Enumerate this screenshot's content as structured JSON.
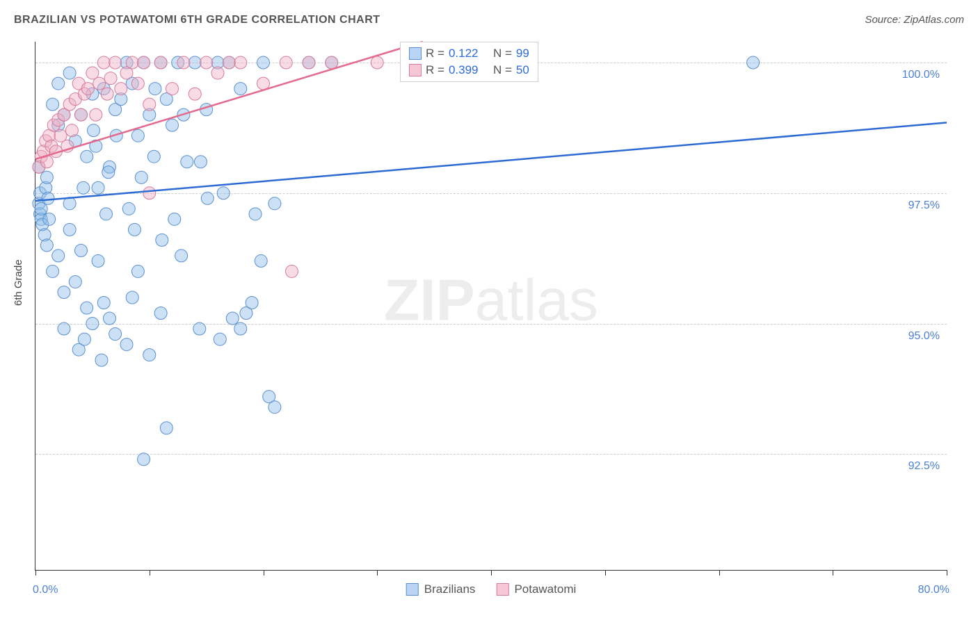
{
  "header": {
    "title": "BRAZILIAN VS POTAWATOMI 6TH GRADE CORRELATION CHART",
    "source": "Source: ZipAtlas.com"
  },
  "axis": {
    "y_title": "6th Grade"
  },
  "watermark": {
    "bold": "ZIP",
    "rest": "atlas"
  },
  "chart": {
    "type": "scatter",
    "xlim": [
      0,
      80
    ],
    "ylim": [
      90.28,
      100.4
    ],
    "x_axis_labels": {
      "min": "0.0%",
      "max": "80.0%"
    },
    "x_ticks": [
      0,
      10,
      20,
      30,
      40,
      50,
      60,
      70,
      80
    ],
    "y_gridlines": [
      92.5,
      95.0,
      97.5,
      100.0
    ],
    "y_labels": [
      "92.5%",
      "95.0%",
      "97.5%",
      "100.0%"
    ],
    "grid_color": "#cccccc",
    "background_color": "#ffffff",
    "marker_radius": 9,
    "marker_opacity": 0.45,
    "trend_line_width": 2.5,
    "series": [
      {
        "name": "Brazilians",
        "marker_fill": "#8fbce8",
        "marker_stroke": "#5a8fd0",
        "line_color": "#2c6bd4",
        "R": "0.122",
        "N": "99",
        "trend": {
          "x1": 0,
          "y1": 97.35,
          "x2": 80,
          "y2": 98.85
        },
        "points": [
          [
            0.3,
            97.3
          ],
          [
            0.4,
            97.1
          ],
          [
            0.5,
            97.0
          ],
          [
            0.6,
            96.9
          ],
          [
            0.5,
            97.2
          ],
          [
            0.8,
            96.7
          ],
          [
            0.4,
            97.5
          ],
          [
            0.9,
            97.6
          ],
          [
            1.0,
            97.8
          ],
          [
            0.3,
            98.0
          ],
          [
            1.1,
            97.4
          ],
          [
            1.2,
            97.0
          ],
          [
            1.5,
            99.2
          ],
          [
            2.0,
            99.6
          ],
          [
            2.5,
            99.0
          ],
          [
            3.0,
            99.8
          ],
          [
            3.5,
            98.5
          ],
          [
            4.0,
            99.0
          ],
          [
            4.5,
            98.2
          ],
          [
            5.0,
            99.4
          ],
          [
            5.5,
            97.6
          ],
          [
            6.0,
            99.5
          ],
          [
            6.5,
            98.0
          ],
          [
            7.0,
            99.1
          ],
          [
            7.5,
            99.3
          ],
          [
            8.0,
            100.0
          ],
          [
            8.5,
            99.6
          ],
          [
            9.0,
            98.6
          ],
          [
            9.5,
            100.0
          ],
          [
            10.0,
            99.0
          ],
          [
            10.5,
            99.5
          ],
          [
            11.0,
            100.0
          ],
          [
            11.5,
            99.3
          ],
          [
            12.0,
            98.8
          ],
          [
            12.5,
            100.0
          ],
          [
            13.0,
            99.0
          ],
          [
            14.0,
            100.0
          ],
          [
            15.0,
            99.1
          ],
          [
            16.0,
            100.0
          ],
          [
            17.0,
            100.0
          ],
          [
            18.0,
            99.5
          ],
          [
            20.0,
            100.0
          ],
          [
            21.0,
            97.3
          ],
          [
            24.0,
            100.0
          ],
          [
            26.0,
            100.0
          ],
          [
            1.0,
            96.5
          ],
          [
            1.5,
            96.0
          ],
          [
            2.0,
            96.3
          ],
          [
            2.5,
            95.6
          ],
          [
            3.0,
            96.8
          ],
          [
            3.5,
            95.8
          ],
          [
            4.0,
            96.4
          ],
          [
            4.5,
            95.3
          ],
          [
            5.0,
            95.0
          ],
          [
            5.5,
            96.2
          ],
          [
            6.0,
            95.4
          ],
          [
            6.5,
            95.1
          ],
          [
            7.0,
            94.8
          ],
          [
            8.0,
            94.6
          ],
          [
            8.5,
            95.5
          ],
          [
            9.0,
            96.0
          ],
          [
            10.0,
            94.4
          ],
          [
            11.0,
            95.2
          ],
          [
            11.5,
            93.0
          ],
          [
            2.0,
            98.8
          ],
          [
            3.0,
            97.3
          ],
          [
            4.2,
            97.6
          ],
          [
            5.3,
            98.4
          ],
          [
            6.4,
            97.9
          ],
          [
            7.1,
            98.6
          ],
          [
            8.2,
            97.2
          ],
          [
            9.3,
            97.8
          ],
          [
            10.4,
            98.2
          ],
          [
            11.1,
            96.6
          ],
          [
            12.2,
            97.0
          ],
          [
            13.3,
            98.1
          ],
          [
            14.4,
            94.9
          ],
          [
            15.1,
            97.4
          ],
          [
            16.2,
            94.7
          ],
          [
            17.3,
            95.1
          ],
          [
            18.0,
            94.9
          ],
          [
            18.5,
            95.2
          ],
          [
            19.0,
            95.4
          ],
          [
            19.3,
            97.1
          ],
          [
            19.8,
            96.2
          ],
          [
            20.5,
            93.6
          ],
          [
            21.0,
            93.4
          ],
          [
            9.5,
            92.4
          ],
          [
            5.8,
            94.3
          ],
          [
            3.8,
            94.5
          ],
          [
            4.3,
            94.7
          ],
          [
            2.5,
            94.9
          ],
          [
            14.5,
            98.1
          ],
          [
            63.0,
            100.0
          ],
          [
            16.5,
            97.5
          ],
          [
            12.8,
            96.3
          ],
          [
            8.7,
            96.8
          ],
          [
            6.2,
            97.1
          ],
          [
            5.1,
            98.7
          ]
        ]
      },
      {
        "name": "Potawatomi",
        "marker_fill": "#f0b0c4",
        "marker_stroke": "#d67a9a",
        "line_color": "#e46a8d",
        "R": "0.399",
        "N": "50",
        "trend": {
          "x1": 0,
          "y1": 98.15,
          "x2": 34,
          "y2": 100.4
        },
        "points": [
          [
            0.3,
            98.0
          ],
          [
            0.5,
            98.2
          ],
          [
            0.7,
            98.3
          ],
          [
            0.9,
            98.5
          ],
          [
            1.0,
            98.1
          ],
          [
            1.2,
            98.6
          ],
          [
            1.4,
            98.4
          ],
          [
            1.6,
            98.8
          ],
          [
            1.8,
            98.3
          ],
          [
            2.0,
            98.9
          ],
          [
            2.2,
            98.6
          ],
          [
            2.5,
            99.0
          ],
          [
            2.8,
            98.4
          ],
          [
            3.0,
            99.2
          ],
          [
            3.2,
            98.7
          ],
          [
            3.5,
            99.3
          ],
          [
            3.8,
            99.6
          ],
          [
            4.0,
            99.0
          ],
          [
            4.3,
            99.4
          ],
          [
            4.6,
            99.5
          ],
          [
            5.0,
            99.8
          ],
          [
            5.3,
            99.0
          ],
          [
            5.6,
            99.6
          ],
          [
            6.0,
            100.0
          ],
          [
            6.3,
            99.4
          ],
          [
            6.6,
            99.7
          ],
          [
            7.0,
            100.0
          ],
          [
            7.5,
            99.5
          ],
          [
            8.0,
            99.8
          ],
          [
            8.5,
            100.0
          ],
          [
            9.0,
            99.6
          ],
          [
            9.5,
            100.0
          ],
          [
            10.0,
            99.2
          ],
          [
            10.0,
            97.5
          ],
          [
            11.0,
            100.0
          ],
          [
            12.0,
            99.5
          ],
          [
            13.0,
            100.0
          ],
          [
            14.0,
            99.4
          ],
          [
            15.0,
            100.0
          ],
          [
            16.0,
            99.8
          ],
          [
            17.0,
            100.0
          ],
          [
            18.0,
            100.0
          ],
          [
            20.0,
            99.6
          ],
          [
            22.0,
            100.0
          ],
          [
            22.5,
            96.0
          ],
          [
            24.0,
            100.0
          ],
          [
            26.0,
            100.0
          ],
          [
            30.0,
            100.0
          ],
          [
            35.0,
            100.0
          ],
          [
            36.0,
            100.0
          ]
        ]
      }
    ]
  },
  "legend": {
    "items": [
      {
        "label": "Brazilians",
        "swatch": "blue"
      },
      {
        "label": "Potawatomi",
        "swatch": "pink"
      }
    ]
  }
}
